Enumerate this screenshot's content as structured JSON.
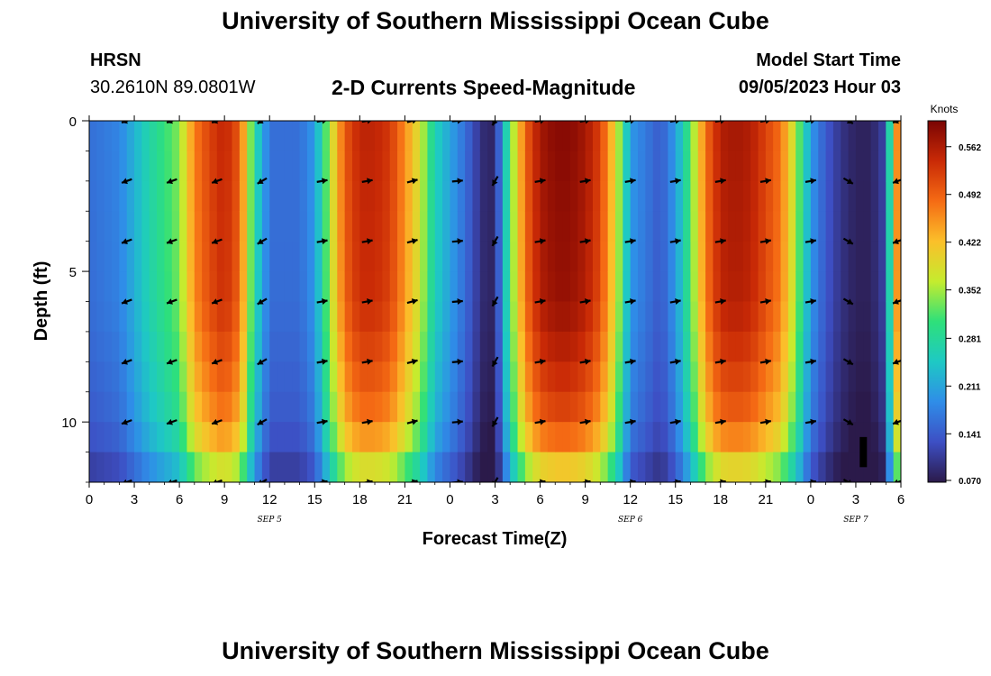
{
  "header": {
    "title": "University of Southern Mississippi Ocean Cube",
    "station": "HRSN",
    "coordinates": "30.2610N  89.0801W",
    "plot_title": "2-D Currents Speed-Magnitude",
    "model_start_label": "Model Start Time",
    "model_start_time": "09/05/2023 Hour 03"
  },
  "footer": {
    "title": "University of Southern Mississippi Ocean Cube"
  },
  "chart_data": {
    "type": "heatmap",
    "title": "2-D Currents Speed-Magnitude",
    "xlabel": "Forecast Time(Z)",
    "ylabel": "Depth (ft)",
    "x_ticks": [
      "0",
      "3",
      "6",
      "9",
      "12",
      "15",
      "18",
      "21",
      "0",
      "3",
      "6",
      "9",
      "12",
      "15",
      "18",
      "21",
      "0",
      "3",
      "6"
    ],
    "x_hours": [
      0,
      3,
      6,
      9,
      12,
      15,
      18,
      21,
      24,
      27,
      30,
      33,
      36,
      39,
      42,
      45,
      48,
      51,
      54
    ],
    "xlim": [
      0,
      54
    ],
    "y_ticks": [
      "0",
      "5",
      "10"
    ],
    "y_values": [
      0,
      5,
      10
    ],
    "ylim": [
      0,
      12
    ],
    "date_labels": [
      {
        "label": "SEP 5",
        "hour": 12
      },
      {
        "label": "SEP 6",
        "hour": 36
      },
      {
        "label": "SEP 7",
        "hour": 51
      }
    ],
    "colorbar": {
      "unit": "Knots",
      "ticks": [
        "0.562",
        "0.492",
        "0.422",
        "0.352",
        "0.281",
        "0.211",
        "0.141",
        "0.070"
      ],
      "min": 0.07,
      "max": 0.6,
      "colors": [
        "#2b1a4a",
        "#3d4fc4",
        "#2f8de8",
        "#1ec9c4",
        "#2ee07a",
        "#c5ec2e",
        "#fbbf2a",
        "#f56b14",
        "#c92a06",
        "#7a0403"
      ]
    },
    "speed_profile": {
      "hours": [
        0,
        2,
        4,
        6,
        7,
        8,
        9,
        10,
        11,
        12,
        14,
        15,
        16,
        17,
        18,
        19,
        20,
        21,
        22,
        23,
        25,
        26,
        26.5,
        27,
        28,
        29,
        30,
        31,
        32,
        33,
        34,
        35,
        36,
        38,
        39,
        40,
        41,
        42,
        43,
        44,
        45,
        46,
        47,
        48,
        49,
        50,
        51,
        52,
        53,
        53.5,
        54
      ],
      "values": [
        0.16,
        0.18,
        0.27,
        0.34,
        0.47,
        0.52,
        0.55,
        0.5,
        0.28,
        0.16,
        0.16,
        0.2,
        0.36,
        0.5,
        0.55,
        0.55,
        0.53,
        0.46,
        0.38,
        0.26,
        0.16,
        0.1,
        0.08,
        0.09,
        0.32,
        0.49,
        0.57,
        0.59,
        0.59,
        0.57,
        0.52,
        0.4,
        0.2,
        0.14,
        0.2,
        0.32,
        0.48,
        0.56,
        0.57,
        0.56,
        0.52,
        0.48,
        0.36,
        0.2,
        0.14,
        0.1,
        0.08,
        0.08,
        0.12,
        0.42,
        0.5
      ]
    },
    "depth_factors": {
      "depths": [
        0,
        6,
        8,
        9.5,
        10.5,
        11.5,
        12
      ],
      "factors": [
        1.0,
        0.98,
        0.93,
        0.88,
        0.82,
        0.7,
        0.52
      ]
    },
    "vectors": {
      "hours": [
        2.5,
        5.5,
        8.5,
        11.5,
        15.5,
        18.5,
        21.5,
        24.5,
        27,
        30,
        33,
        36,
        39,
        42,
        45,
        48,
        50.5,
        53.8
      ],
      "depths": [
        0,
        2,
        4,
        6,
        8,
        10,
        12
      ],
      "directions_deg": [
        200,
        200,
        200,
        210,
        10,
        10,
        15,
        5,
        240,
        10,
        10,
        10,
        10,
        10,
        10,
        10,
        330,
        200
      ]
    },
    "black_bar": {
      "hour": 51.5,
      "depth_from": 10.5,
      "depth_to": 11.5
    }
  }
}
